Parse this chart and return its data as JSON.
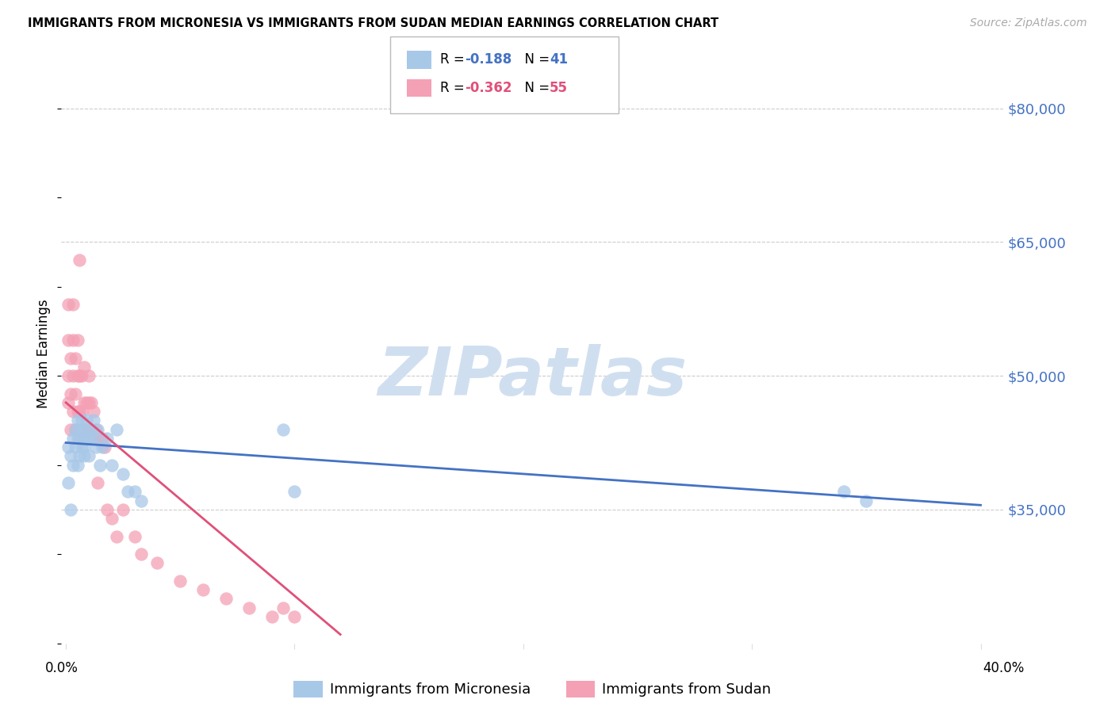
{
  "title": "IMMIGRANTS FROM MICRONESIA VS IMMIGRANTS FROM SUDAN MEDIAN EARNINGS CORRELATION CHART",
  "source": "Source: ZipAtlas.com",
  "ylabel": "Median Earnings",
  "yticks": [
    35000,
    50000,
    65000,
    80000
  ],
  "ytick_labels": [
    "$35,000",
    "$50,000",
    "$65,000",
    "$80,000"
  ],
  "ymin": 20000,
  "ymax": 85000,
  "xmin": -0.002,
  "xmax": 0.41,
  "micronesia_color": "#a8c8e8",
  "sudan_color": "#f4a0b5",
  "micronesia_line_color": "#4472c4",
  "sudan_line_color": "#e0507a",
  "watermark_color": "#d0dff0",
  "micronesia_x": [
    0.001,
    0.001,
    0.002,
    0.002,
    0.003,
    0.003,
    0.004,
    0.004,
    0.005,
    0.005,
    0.005,
    0.006,
    0.006,
    0.007,
    0.007,
    0.007,
    0.008,
    0.008,
    0.008,
    0.009,
    0.009,
    0.01,
    0.01,
    0.011,
    0.012,
    0.012,
    0.013,
    0.014,
    0.015,
    0.016,
    0.018,
    0.02,
    0.022,
    0.025,
    0.027,
    0.03,
    0.033,
    0.095,
    0.1,
    0.34,
    0.35
  ],
  "micronesia_y": [
    38000,
    42000,
    35000,
    41000,
    40000,
    43000,
    42000,
    44000,
    40000,
    43000,
    45000,
    41000,
    44000,
    42000,
    43000,
    45000,
    41000,
    42000,
    44000,
    43000,
    45000,
    41000,
    43000,
    44000,
    43000,
    45000,
    42000,
    44000,
    40000,
    42000,
    43000,
    40000,
    44000,
    39000,
    37000,
    37000,
    36000,
    44000,
    37000,
    37000,
    36000
  ],
  "sudan_x": [
    0.001,
    0.001,
    0.001,
    0.001,
    0.002,
    0.002,
    0.002,
    0.003,
    0.003,
    0.003,
    0.003,
    0.004,
    0.004,
    0.004,
    0.005,
    0.005,
    0.005,
    0.006,
    0.006,
    0.006,
    0.006,
    0.007,
    0.007,
    0.007,
    0.008,
    0.008,
    0.008,
    0.009,
    0.009,
    0.01,
    0.01,
    0.01,
    0.011,
    0.011,
    0.012,
    0.012,
    0.013,
    0.014,
    0.015,
    0.016,
    0.017,
    0.018,
    0.02,
    0.022,
    0.025,
    0.03,
    0.033,
    0.04,
    0.05,
    0.06,
    0.07,
    0.08,
    0.09,
    0.095,
    0.1
  ],
  "sudan_y": [
    47000,
    50000,
    54000,
    58000,
    44000,
    48000,
    52000,
    46000,
    50000,
    54000,
    58000,
    44000,
    48000,
    52000,
    46000,
    50000,
    54000,
    43000,
    46000,
    50000,
    63000,
    43000,
    46000,
    50000,
    44000,
    47000,
    51000,
    44000,
    47000,
    44000,
    47000,
    50000,
    44000,
    47000,
    43000,
    46000,
    44000,
    38000,
    43000,
    43000,
    42000,
    35000,
    34000,
    32000,
    35000,
    32000,
    30000,
    29000,
    27000,
    26000,
    25000,
    24000,
    23000,
    24000,
    23000
  ],
  "mic_line_x0": 0.0,
  "mic_line_x1": 0.4,
  "mic_line_y0": 42500,
  "mic_line_y1": 35500,
  "sud_line_x0": 0.0,
  "sud_line_x1": 0.12,
  "sud_line_y0": 47000,
  "sud_line_y1": 21000
}
